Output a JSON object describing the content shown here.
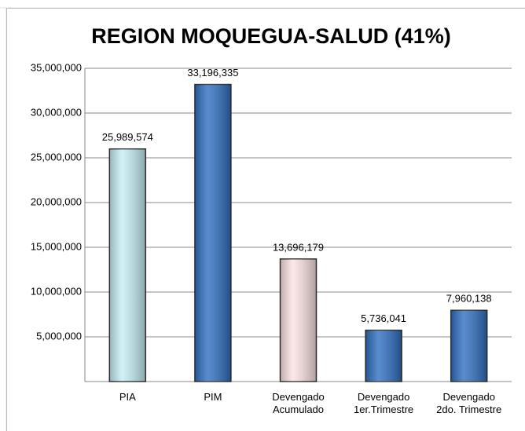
{
  "chart_data": {
    "type": "bar",
    "title": "REGION MOQUEGUA-SALUD (41%)",
    "categories": [
      "PIA",
      "PIM",
      "Devengado\nAcumulado",
      "Devengado\n1er.Trimestre",
      "Devengado\n2do. Trimestre"
    ],
    "values": [
      25989574,
      33196335,
      13696179,
      5736041,
      7960138
    ],
    "value_labels": [
      "25,989,574",
      "33,196,335",
      "13,696,179",
      "5,736,041",
      "7,960,138"
    ],
    "colors": [
      "#c6eef6",
      "#2f6fc1",
      "#fde3e3",
      "#2f6fc1",
      "#2f6fc1"
    ],
    "ylim": [
      0,
      35000000
    ],
    "yticks": [
      {
        "value": 5000000,
        "label": "5,000,000"
      },
      {
        "value": 10000000,
        "label": "10,000,000"
      },
      {
        "value": 15000000,
        "label": "15,000,000"
      },
      {
        "value": 20000000,
        "label": "20,000,000"
      },
      {
        "value": 25000000,
        "label": "25,000,000"
      },
      {
        "value": 30000000,
        "label": "30,000,000"
      },
      {
        "value": 35000000,
        "label": "35,000,000"
      }
    ],
    "grid": true
  }
}
